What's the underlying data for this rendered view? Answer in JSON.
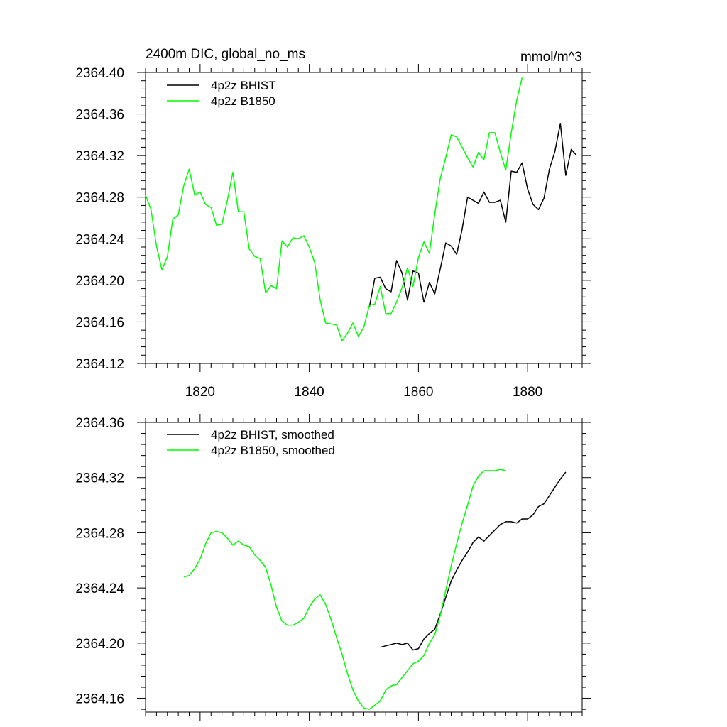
{
  "chart_data": [
    {
      "type": "line",
      "title": "2400m DIC, global_no_ms",
      "units": "mmol/m^3",
      "xlim": [
        1810,
        1890
      ],
      "ylim": [
        2364.12,
        2364.4
      ],
      "x_ticks": [
        1820,
        1840,
        1860,
        1880
      ],
      "x_tick_labels": [
        "1820",
        "1840",
        "1860",
        "1880"
      ],
      "y_ticks": [
        2364.12,
        2364.16,
        2364.2,
        2364.24,
        2364.28,
        2364.32,
        2364.36,
        2364.4
      ],
      "y_tick_labels": [
        "2364.12",
        "2364.16",
        "2364.20",
        "2364.24",
        "2364.28",
        "2364.32",
        "2364.36",
        "2364.40"
      ],
      "legend_position": "top-left",
      "series": [
        {
          "name": "4p2z BHIST",
          "color": "#000000",
          "x": [
            1851,
            1852,
            1853,
            1854,
            1855,
            1856,
            1857,
            1858,
            1859,
            1860,
            1861,
            1862,
            1863,
            1864,
            1865,
            1866,
            1867,
            1868,
            1869,
            1870,
            1871,
            1872,
            1873,
            1874,
            1875,
            1876,
            1877,
            1878,
            1879,
            1880,
            1881,
            1882,
            1883,
            1884,
            1885,
            1886,
            1887,
            1888,
            1889
          ],
          "y": [
            2364.174,
            2364.202,
            2364.203,
            2364.192,
            2364.189,
            2364.219,
            2364.207,
            2364.181,
            2364.209,
            2364.207,
            2364.179,
            2364.198,
            2364.187,
            2364.211,
            2364.236,
            2364.233,
            2364.225,
            2364.249,
            2364.28,
            2364.277,
            2364.274,
            2364.285,
            2364.275,
            2364.275,
            2364.277,
            2364.256,
            2364.305,
            2364.304,
            2364.313,
            2364.288,
            2364.273,
            2364.268,
            2364.279,
            2364.307,
            2364.324,
            2364.351,
            2364.301,
            2364.326,
            2364.32
          ]
        },
        {
          "name": "4p2z B1850",
          "color": "#00ff00",
          "x": [
            1810,
            1811,
            1812,
            1813,
            1814,
            1815,
            1816,
            1817,
            1818,
            1819,
            1820,
            1821,
            1822,
            1823,
            1824,
            1825,
            1826,
            1827,
            1828,
            1829,
            1830,
            1831,
            1832,
            1833,
            1834,
            1835,
            1836,
            1837,
            1838,
            1839,
            1840,
            1841,
            1842,
            1843,
            1844,
            1845,
            1846,
            1847,
            1848,
            1849,
            1850,
            1851,
            1852,
            1853,
            1854,
            1855,
            1856,
            1857,
            1858,
            1859,
            1860,
            1861,
            1862,
            1863,
            1864,
            1865,
            1866,
            1867,
            1868,
            1869,
            1870,
            1871,
            1872,
            1873,
            1874,
            1875,
            1876,
            1877,
            1878,
            1879
          ],
          "y": [
            2364.282,
            2364.268,
            2364.233,
            2364.21,
            2364.223,
            2364.259,
            2364.263,
            2364.291,
            2364.307,
            2364.282,
            2364.285,
            2364.273,
            2364.27,
            2364.253,
            2364.254,
            2364.277,
            2364.304,
            2364.266,
            2364.266,
            2364.23,
            2364.223,
            2364.221,
            2364.188,
            2364.195,
            2364.192,
            2364.238,
            2364.232,
            2364.241,
            2364.24,
            2364.243,
            2364.232,
            2364.217,
            2364.181,
            2364.159,
            2364.158,
            2364.157,
            2364.142,
            2364.149,
            2364.159,
            2364.146,
            2364.155,
            2364.176,
            2364.177,
            2364.194,
            2364.168,
            2364.168,
            2364.179,
            2364.193,
            2364.212,
            2364.194,
            2364.222,
            2364.237,
            2364.226,
            2364.264,
            2364.298,
            2364.318,
            2364.34,
            2364.338,
            2364.328,
            2364.318,
            2364.309,
            2364.323,
            2364.316,
            2364.342,
            2364.342,
            2364.323,
            2364.306,
            2364.342,
            2364.373,
            2364.395
          ]
        }
      ]
    },
    {
      "type": "line",
      "xlim": [
        1810,
        1890
      ],
      "ylim": [
        2364.15,
        2364.36
      ],
      "x_ticks": [
        1820,
        1840,
        1860,
        1880
      ],
      "y_ticks": [
        2364.16,
        2364.2,
        2364.24,
        2364.28,
        2364.32,
        2364.36
      ],
      "y_tick_labels": [
        "2364.16",
        "2364.20",
        "2364.24",
        "2364.28",
        "2364.32",
        "2364.36"
      ],
      "legend_position": "top-left",
      "series": [
        {
          "name": "4p2z BHIST, smoothed",
          "color": "#000000",
          "x": [
            1853,
            1854,
            1855,
            1856,
            1857,
            1858,
            1859,
            1860,
            1861,
            1862,
            1863,
            1864,
            1865,
            1866,
            1867,
            1868,
            1869,
            1870,
            1871,
            1872,
            1873,
            1874,
            1875,
            1876,
            1877,
            1878,
            1879,
            1880,
            1881,
            1882,
            1883,
            1884,
            1885,
            1886,
            1887
          ],
          "y": [
            2364.197,
            2364.198,
            2364.199,
            2364.2,
            2364.199,
            2364.2,
            2364.195,
            2364.196,
            2364.203,
            2364.207,
            2364.21,
            2364.221,
            2364.233,
            2364.245,
            2364.253,
            2364.26,
            2364.266,
            2364.273,
            2364.277,
            2364.274,
            2364.278,
            2364.282,
            2364.286,
            2364.288,
            2364.288,
            2364.287,
            2364.29,
            2364.29,
            2364.293,
            2364.299,
            2364.301,
            2364.307,
            2364.313,
            2364.319,
            2364.324
          ]
        },
        {
          "name": "4p2z B1850, smoothed",
          "color": "#00ff00",
          "x": [
            1817,
            1818,
            1819,
            1820,
            1821,
            1822,
            1823,
            1824,
            1825,
            1826,
            1827,
            1828,
            1829,
            1830,
            1831,
            1832,
            1833,
            1834,
            1835,
            1836,
            1837,
            1838,
            1839,
            1840,
            1841,
            1842,
            1843,
            1844,
            1845,
            1846,
            1847,
            1848,
            1849,
            1850,
            1851,
            1852,
            1853,
            1854,
            1855,
            1856,
            1857,
            1858,
            1859,
            1860,
            1861,
            1862,
            1863,
            1864,
            1865,
            1866,
            1867,
            1868,
            1869,
            1870,
            1871,
            1872,
            1873,
            1874,
            1875,
            1876
          ],
          "y": [
            2364.248,
            2364.249,
            2364.254,
            2364.261,
            2364.272,
            2364.28,
            2364.281,
            2364.28,
            2364.276,
            2364.271,
            2364.274,
            2364.271,
            2364.27,
            2364.264,
            2364.26,
            2364.255,
            2364.242,
            2364.226,
            2364.216,
            2364.213,
            2364.213,
            2364.215,
            2364.218,
            2364.226,
            2364.232,
            2364.235,
            2364.228,
            2364.217,
            2364.204,
            2364.192,
            2364.178,
            2364.166,
            2364.158,
            2364.153,
            2364.152,
            2364.155,
            2364.158,
            2364.166,
            2364.169,
            2364.17,
            2364.175,
            2364.18,
            2364.185,
            2364.187,
            2364.191,
            2364.2,
            2364.206,
            2364.22,
            2364.238,
            2364.256,
            2364.272,
            2364.287,
            2364.3,
            2364.314,
            2364.321,
            2364.325,
            2364.325,
            2364.325,
            2364.326,
            2364.325
          ]
        }
      ]
    }
  ]
}
